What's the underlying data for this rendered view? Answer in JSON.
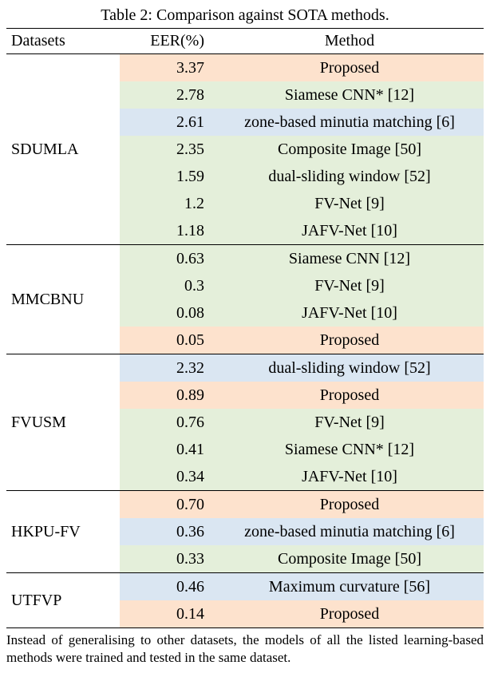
{
  "caption": "Table 2: Comparison against SOTA methods.",
  "headers": {
    "datasets": "Datasets",
    "eer": "EER(%)",
    "method": "Method"
  },
  "colors": {
    "proposed": "#fde2cd",
    "learning": "#e4efda",
    "traditional": "#dae6f2",
    "rule": "#000000",
    "background": "#ffffff"
  },
  "fonts": {
    "family": "Times New Roman",
    "caption_size_pt": 20,
    "header_size_pt": 20,
    "cell_size_pt": 20,
    "footnote_size_pt": 17
  },
  "groups": [
    {
      "dataset": "SDUMLA",
      "rows": [
        {
          "eer": "3.37",
          "method": "Proposed",
          "bg": "proposed"
        },
        {
          "eer": "2.78",
          "method": "Siamese CNN* [12]",
          "bg": "learning"
        },
        {
          "eer": "2.61",
          "method": "zone-based minutia matching [6]",
          "bg": "traditional"
        },
        {
          "eer": "2.35",
          "method": "Composite Image [50]",
          "bg": "learning"
        },
        {
          "eer": "1.59",
          "method": "dual-sliding window [52]",
          "bg": "learning"
        },
        {
          "eer": "1.2",
          "method": "FV-Net [9]",
          "bg": "learning"
        },
        {
          "eer": "1.18",
          "method": "JAFV-Net [10]",
          "bg": "learning"
        }
      ]
    },
    {
      "dataset": "MMCBNU",
      "rows": [
        {
          "eer": "0.63",
          "method": "Siamese CNN [12]",
          "bg": "learning"
        },
        {
          "eer": "0.3",
          "method": "FV-Net [9]",
          "bg": "learning"
        },
        {
          "eer": "0.08",
          "method": "JAFV-Net [10]",
          "bg": "learning"
        },
        {
          "eer": "0.05",
          "method": "Proposed",
          "bg": "proposed"
        }
      ]
    },
    {
      "dataset": "FVUSM",
      "rows": [
        {
          "eer": "2.32",
          "method": "dual-sliding window [52]",
          "bg": "traditional"
        },
        {
          "eer": "0.89",
          "method": "Proposed",
          "bg": "proposed"
        },
        {
          "eer": "0.76",
          "method": "FV-Net [9]",
          "bg": "learning"
        },
        {
          "eer": "0.41",
          "method": "Siamese CNN* [12]",
          "bg": "learning"
        },
        {
          "eer": "0.34",
          "method": "JAFV-Net [10]",
          "bg": "learning"
        }
      ]
    },
    {
      "dataset": "HKPU-FV",
      "rows": [
        {
          "eer": "0.70",
          "method": "Proposed",
          "bg": "proposed"
        },
        {
          "eer": "0.36",
          "method": "zone-based minutia matching [6]",
          "bg": "traditional"
        },
        {
          "eer": "0.33",
          "method": "Composite Image [50]",
          "bg": "learning"
        }
      ]
    },
    {
      "dataset": "UTFVP",
      "rows": [
        {
          "eer": "0.46",
          "method": "Maximum curvature [56]",
          "bg": "traditional"
        },
        {
          "eer": "0.14",
          "method": "Proposed",
          "bg": "proposed"
        }
      ]
    }
  ],
  "footnote": "Instead of generalising to other datasets, the models of all the listed learning-based methods were trained and tested in the same dataset."
}
